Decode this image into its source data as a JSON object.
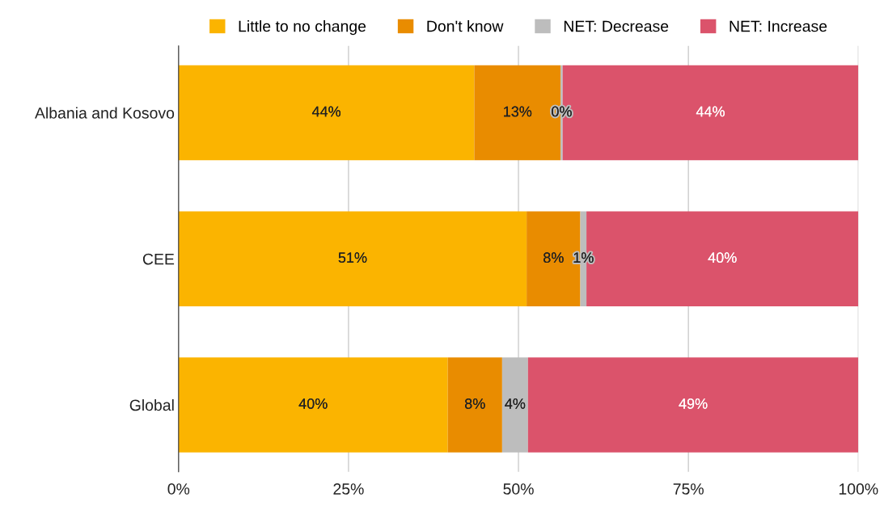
{
  "chart_data": {
    "type": "bar",
    "orientation": "horizontal",
    "stacked": true,
    "categories": [
      "Albania and Kosovo",
      "CEE",
      "Global"
    ],
    "series": [
      {
        "name": "Little to no change",
        "color": "#fbb400",
        "values": [
          43.5,
          51.2,
          39.6
        ],
        "value_labels": [
          "44%",
          "51%",
          "40%"
        ]
      },
      {
        "name": "Don't know",
        "color": "#e98c00",
        "values": [
          12.7,
          7.9,
          8.0
        ],
        "value_labels": [
          "13%",
          "8%",
          "8%"
        ]
      },
      {
        "name": "NET: Decrease",
        "color": "#bdbdbd",
        "values": [
          0.3,
          0.9,
          3.8
        ],
        "value_labels": [
          "0%",
          "1%",
          "4%"
        ]
      },
      {
        "name": "NET: Increase",
        "color": "#db536b",
        "values": [
          43.5,
          40.0,
          48.6
        ],
        "value_labels": [
          "44%",
          "40%",
          "49%"
        ]
      }
    ],
    "xlim": [
      0,
      100
    ],
    "xticks": [
      {
        "value": 0,
        "label": "0%"
      },
      {
        "value": 25,
        "label": "25%"
      },
      {
        "value": 50,
        "label": "50%"
      },
      {
        "value": 75,
        "label": "75%"
      },
      {
        "value": 100,
        "label": "100%"
      }
    ],
    "grid": "x",
    "legend": "top"
  }
}
